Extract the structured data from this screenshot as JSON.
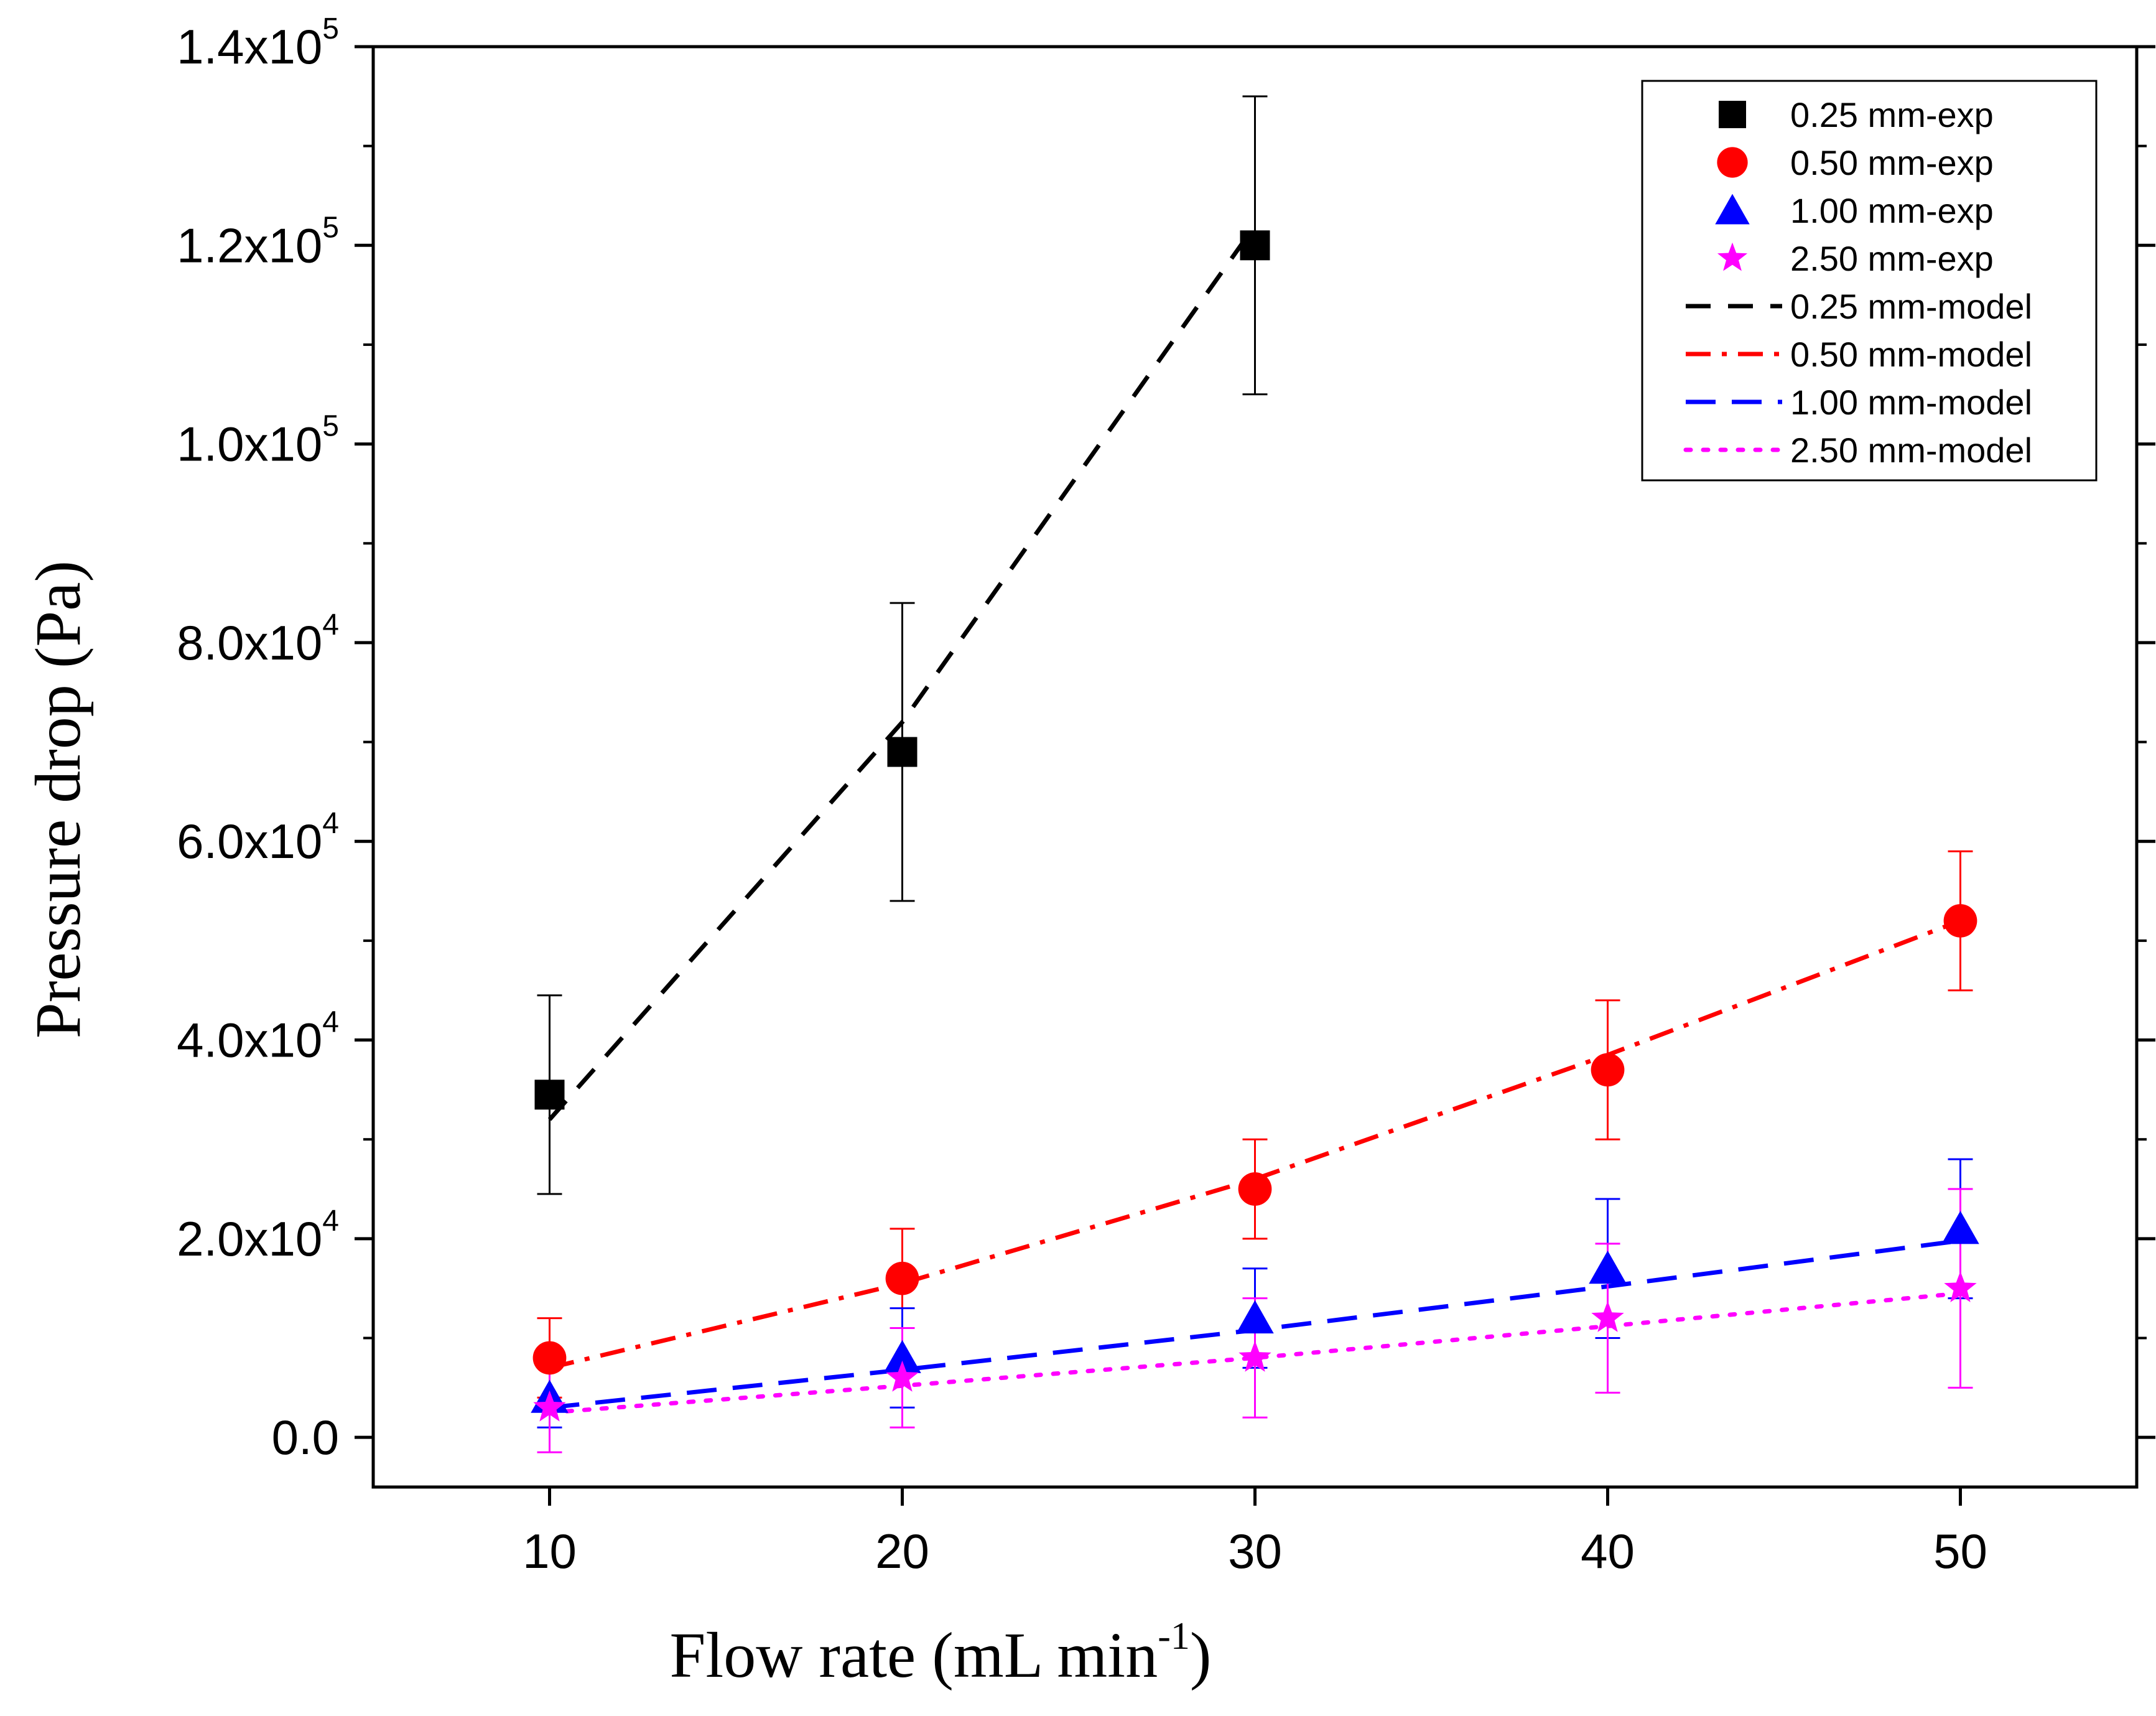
{
  "chart_data": {
    "type": "scatter",
    "xlabel": "Flow rate (mL min",
    "xlabel_sup": "-1",
    "xlabel_end": ")",
    "ylabel": "Pressure drop (Pa)",
    "xlim": [
      5,
      55
    ],
    "ylim": [
      -5000,
      140000
    ],
    "x_ticks": [
      10,
      20,
      30,
      40,
      50
    ],
    "x_tick_labels": [
      "10",
      "20",
      "30",
      "40",
      "50"
    ],
    "y_ticks": [
      {
        "value": 0,
        "mantissa": "0.0",
        "exp": ""
      },
      {
        "value": 20000,
        "mantissa": "2.0x10",
        "exp": "4"
      },
      {
        "value": 40000,
        "mantissa": "4.0x10",
        "exp": "4"
      },
      {
        "value": 60000,
        "mantissa": "6.0x10",
        "exp": "4"
      },
      {
        "value": 80000,
        "mantissa": "8.0x10",
        "exp": "4"
      },
      {
        "value": 100000,
        "mantissa": "1.0x10",
        "exp": "5"
      },
      {
        "value": 120000,
        "mantissa": "1.2x10",
        "exp": "5"
      },
      {
        "value": 140000,
        "mantissa": "1.4x10",
        "exp": "5"
      }
    ],
    "series": [
      {
        "name": "0.25 mm-exp",
        "kind": "exp",
        "marker": "square",
        "color": "#000000",
        "x": [
          10,
          20,
          30
        ],
        "y": [
          34500,
          69000,
          120000
        ],
        "err": [
          10000,
          15000,
          15000
        ]
      },
      {
        "name": "0.50 mm-exp",
        "kind": "exp",
        "marker": "circle",
        "color": "#ff0000",
        "x": [
          10,
          20,
          30,
          40,
          50
        ],
        "y": [
          8000,
          16000,
          25000,
          37000,
          52000
        ],
        "err": [
          4000,
          5000,
          5000,
          7000,
          7000
        ]
      },
      {
        "name": "1.00 mm-exp",
        "kind": "exp",
        "marker": "triangle",
        "color": "#0000ff",
        "x": [
          10,
          20,
          30,
          40,
          50
        ],
        "y": [
          4000,
          8000,
          12000,
          17000,
          21000
        ],
        "err": [
          3000,
          5000,
          5000,
          7000,
          7000
        ]
      },
      {
        "name": "2.50 mm-exp",
        "kind": "exp",
        "marker": "star",
        "color": "#ff00ff",
        "x": [
          10,
          20,
          30,
          40,
          50
        ],
        "y": [
          3000,
          6000,
          8000,
          12000,
          15000
        ],
        "err": [
          4500,
          5000,
          6000,
          7500,
          10000
        ]
      },
      {
        "name": "0.25 mm-model",
        "kind": "model",
        "dash": "dash",
        "color": "#000000",
        "x": [
          10,
          20,
          30
        ],
        "y": [
          32000,
          72000,
          122000
        ]
      },
      {
        "name": "0.50 mm-model",
        "kind": "model",
        "dash": "dashdot",
        "color": "#ff0000",
        "x": [
          10,
          20,
          30,
          40,
          50
        ],
        "y": [
          7000,
          15500,
          26000,
          38500,
          52000
        ]
      },
      {
        "name": "1.00 mm-model",
        "kind": "model",
        "dash": "longdash",
        "color": "#0000ff",
        "x": [
          10,
          20,
          30,
          40,
          50
        ],
        "y": [
          3000,
          6800,
          10800,
          15200,
          19800
        ]
      },
      {
        "name": "2.50 mm-model",
        "kind": "model",
        "dash": "dot",
        "color": "#ff00ff",
        "x": [
          10,
          20,
          30,
          40,
          50
        ],
        "y": [
          2500,
          5200,
          8000,
          11200,
          14500
        ]
      }
    ],
    "legend_position": "top-right"
  }
}
